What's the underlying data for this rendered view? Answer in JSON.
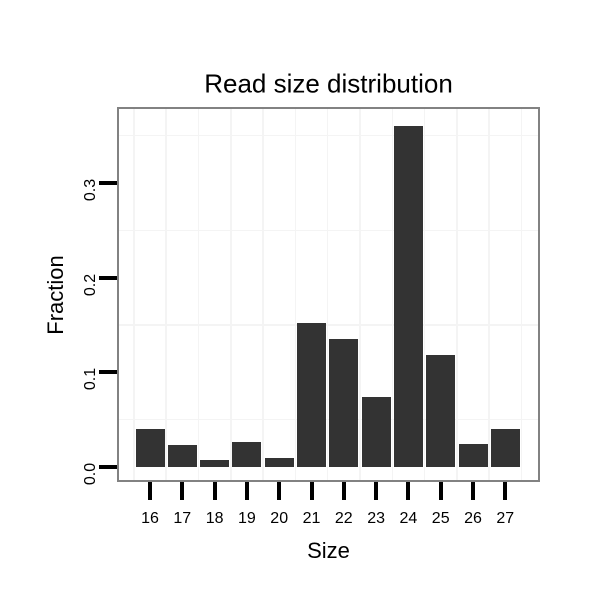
{
  "chart_data": {
    "type": "bar",
    "title": "Read size distribution",
    "xlabel": "Size",
    "ylabel": "Fraction",
    "categories": [
      "16",
      "17",
      "18",
      "19",
      "20",
      "21",
      "22",
      "23",
      "24",
      "25",
      "26",
      "27"
    ],
    "values": [
      0.04,
      0.023,
      0.007,
      0.026,
      0.009,
      0.152,
      0.135,
      0.074,
      0.36,
      0.118,
      0.024,
      0.04
    ],
    "yticks": [
      0.0,
      0.1,
      0.2,
      0.3
    ],
    "ytick_labels": [
      "0.0",
      "0.1",
      "0.2",
      "0.3"
    ],
    "ylim": [
      -0.014,
      0.378
    ],
    "grid_minor_y": [
      0.05,
      0.15,
      0.25,
      0.35
    ],
    "grid": "minor gridlines only; horizontal every 0.05, vertical at category boundaries",
    "legend": "none",
    "colors": {
      "bar": "#333333",
      "panel_border": "#828282",
      "grid": "#f4f4f4",
      "background": "#ffffff",
      "text": "#000000"
    }
  }
}
